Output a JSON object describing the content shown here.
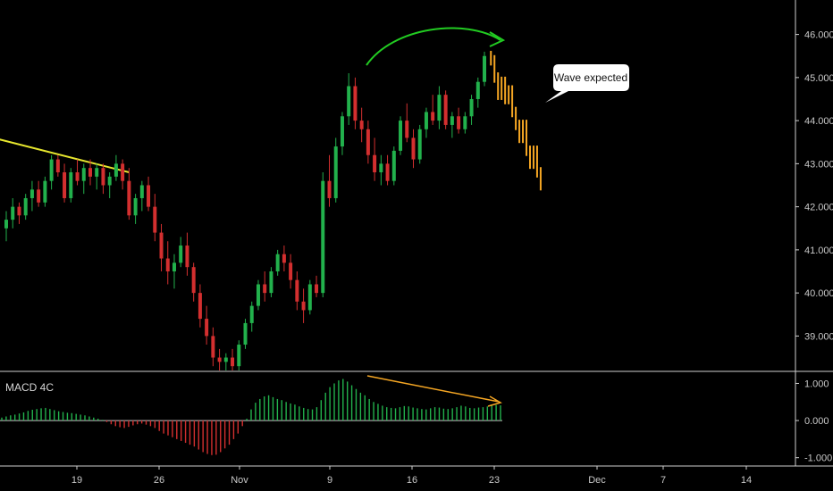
{
  "chart_data": [
    {
      "type": "candlestick",
      "ylim": [
        38.2,
        46.8
      ],
      "y_ticks": [
        "39.000",
        "40.000",
        "41.000",
        "42.000",
        "43.000",
        "44.000",
        "45.000",
        "46.000"
      ],
      "x_ticks": [
        "19",
        "26",
        "Nov",
        "9",
        "16",
        "23",
        "Dec",
        "7",
        "14"
      ],
      "colors": {
        "up": "#22b14c",
        "down": "#d32f2f",
        "projection": "#f5a623",
        "trendline": "#e6e62e",
        "arc": "#22cc22"
      },
      "ohlc": [
        [
          41.5,
          41.9,
          41.2,
          41.7
        ],
        [
          41.7,
          42.2,
          41.5,
          42.0
        ],
        [
          42.0,
          42.1,
          41.6,
          41.8
        ],
        [
          41.8,
          42.3,
          41.7,
          42.2
        ],
        [
          42.2,
          42.6,
          41.9,
          42.4
        ],
        [
          42.4,
          42.6,
          42.0,
          42.1
        ],
        [
          42.1,
          42.7,
          42.0,
          42.6
        ],
        [
          42.6,
          43.2,
          42.4,
          43.1
        ],
        [
          43.1,
          43.2,
          42.7,
          42.8
        ],
        [
          42.8,
          43.0,
          42.1,
          42.2
        ],
        [
          42.2,
          42.9,
          42.1,
          42.8
        ],
        [
          42.8,
          43.1,
          42.5,
          42.6
        ],
        [
          42.6,
          43.0,
          42.3,
          42.9
        ],
        [
          42.9,
          43.1,
          42.5,
          42.7
        ],
        [
          42.7,
          43.0,
          42.4,
          42.9
        ],
        [
          42.9,
          43.0,
          42.3,
          42.5
        ],
        [
          42.5,
          42.8,
          42.2,
          42.7
        ],
        [
          42.7,
          43.2,
          42.6,
          43.0
        ],
        [
          43.0,
          43.1,
          42.4,
          42.6
        ],
        [
          42.6,
          42.9,
          41.7,
          41.8
        ],
        [
          41.8,
          42.3,
          41.6,
          42.2
        ],
        [
          42.2,
          42.6,
          41.9,
          42.5
        ],
        [
          42.5,
          42.7,
          41.9,
          42.0
        ],
        [
          42.0,
          42.3,
          41.2,
          41.4
        ],
        [
          41.4,
          41.6,
          40.5,
          40.8
        ],
        [
          40.8,
          41.2,
          40.2,
          40.5
        ],
        [
          40.5,
          40.9,
          40.1,
          40.7
        ],
        [
          40.7,
          41.3,
          40.6,
          41.1
        ],
        [
          41.1,
          41.4,
          40.4,
          40.6
        ],
        [
          40.6,
          40.7,
          39.8,
          40.0
        ],
        [
          40.0,
          40.2,
          39.2,
          39.4
        ],
        [
          39.4,
          39.7,
          38.8,
          39.0
        ],
        [
          39.0,
          39.2,
          38.3,
          38.5
        ],
        [
          38.5,
          38.7,
          38.2,
          38.4
        ],
        [
          38.4,
          38.6,
          38.2,
          38.5
        ],
        [
          38.5,
          38.7,
          38.2,
          38.3
        ],
        [
          38.3,
          38.9,
          38.2,
          38.8
        ],
        [
          38.8,
          39.4,
          38.7,
          39.3
        ],
        [
          39.3,
          39.8,
          39.1,
          39.7
        ],
        [
          39.7,
          40.3,
          39.6,
          40.2
        ],
        [
          40.2,
          40.5,
          39.8,
          40.0
        ],
        [
          40.0,
          40.6,
          39.9,
          40.5
        ],
        [
          40.5,
          41.0,
          40.4,
          40.9
        ],
        [
          40.9,
          41.1,
          40.5,
          40.7
        ],
        [
          40.7,
          40.9,
          40.1,
          40.3
        ],
        [
          40.3,
          40.5,
          39.6,
          39.8
        ],
        [
          39.8,
          40.1,
          39.3,
          39.6
        ],
        [
          39.6,
          40.3,
          39.5,
          40.2
        ],
        [
          40.2,
          40.4,
          39.9,
          40.0
        ],
        [
          40.0,
          42.8,
          39.9,
          42.6
        ],
        [
          42.6,
          43.2,
          42.0,
          42.2
        ],
        [
          42.2,
          43.6,
          42.1,
          43.4
        ],
        [
          43.4,
          44.2,
          43.2,
          44.1
        ],
        [
          44.1,
          45.1,
          43.9,
          44.8
        ],
        [
          44.8,
          45.0,
          43.8,
          44.0
        ],
        [
          44.0,
          44.3,
          43.5,
          43.8
        ],
        [
          43.8,
          44.0,
          43.0,
          43.2
        ],
        [
          43.2,
          43.6,
          42.6,
          42.8
        ],
        [
          42.8,
          43.2,
          42.5,
          43.0
        ],
        [
          43.0,
          43.2,
          42.5,
          42.6
        ],
        [
          42.6,
          43.4,
          42.5,
          43.3
        ],
        [
          43.3,
          44.1,
          43.2,
          44.0
        ],
        [
          44.0,
          44.4,
          43.5,
          43.6
        ],
        [
          43.6,
          43.8,
          42.9,
          43.1
        ],
        [
          43.1,
          43.9,
          43.0,
          43.8
        ],
        [
          43.8,
          44.3,
          43.6,
          44.2
        ],
        [
          44.2,
          44.6,
          43.9,
          44.0
        ],
        [
          44.0,
          44.8,
          43.8,
          44.6
        ],
        [
          44.6,
          44.7,
          43.8,
          43.9
        ],
        [
          43.9,
          44.2,
          43.6,
          44.1
        ],
        [
          44.1,
          44.3,
          43.7,
          43.8
        ],
        [
          43.8,
          44.2,
          43.7,
          44.1
        ],
        [
          44.1,
          44.6,
          43.9,
          44.5
        ],
        [
          44.5,
          45.0,
          44.3,
          44.9
        ],
        [
          44.9,
          45.6,
          44.8,
          45.5
        ]
      ],
      "projection": [
        45.4,
        45.0,
        44.6,
        44.9,
        44.5,
        44.7,
        44.2,
        43.9,
        43.6,
        43.9,
        43.3,
        43.0,
        43.3,
        42.8,
        42.5
      ],
      "trendline": [
        [
          -2,
          43.6
        ],
        [
          19,
          42.8
        ]
      ],
      "annotation_text": "Wave expected"
    },
    {
      "type": "bar",
      "title": "MACD 4C",
      "ylim": [
        -1.2,
        1.3
      ],
      "y_ticks": [
        "1.000",
        "0.000",
        "-1.000"
      ],
      "colors": {
        "positive": "#22b14c",
        "negative": "#d32f2f",
        "arrow": "#f5a623"
      },
      "values": [
        0.08,
        0.11,
        0.14,
        0.16,
        0.19,
        0.22,
        0.26,
        0.29,
        0.31,
        0.33,
        0.34,
        0.31,
        0.28,
        0.25,
        0.23,
        0.21,
        0.2,
        0.18,
        0.16,
        0.14,
        0.11,
        0.08,
        0.05,
        0.02,
        -0.04,
        -0.1,
        -0.15,
        -0.18,
        -0.2,
        -0.17,
        -0.13,
        -0.1,
        -0.08,
        -0.11,
        -0.15,
        -0.2,
        -0.28,
        -0.35,
        -0.4,
        -0.45,
        -0.5,
        -0.55,
        -0.6,
        -0.65,
        -0.7,
        -0.78,
        -0.85,
        -0.9,
        -0.93,
        -0.92,
        -0.85,
        -0.75,
        -0.65,
        -0.5,
        -0.35,
        -0.15,
        0.05,
        0.3,
        0.48,
        0.58,
        0.65,
        0.68,
        0.63,
        0.58,
        0.55,
        0.5,
        0.46,
        0.43,
        0.38,
        0.34,
        0.31,
        0.3,
        0.36,
        0.55,
        0.75,
        0.9,
        1.0,
        1.08,
        1.12,
        1.05,
        0.95,
        0.85,
        0.75,
        0.68,
        0.58,
        0.5,
        0.45,
        0.4,
        0.36,
        0.34,
        0.33,
        0.36,
        0.39,
        0.38,
        0.35,
        0.33,
        0.31,
        0.3,
        0.33,
        0.36,
        0.35,
        0.32,
        0.31,
        0.33,
        0.36,
        0.4,
        0.38,
        0.34,
        0.33,
        0.35,
        0.36,
        0.38,
        0.4,
        0.42,
        0.41
      ]
    }
  ]
}
